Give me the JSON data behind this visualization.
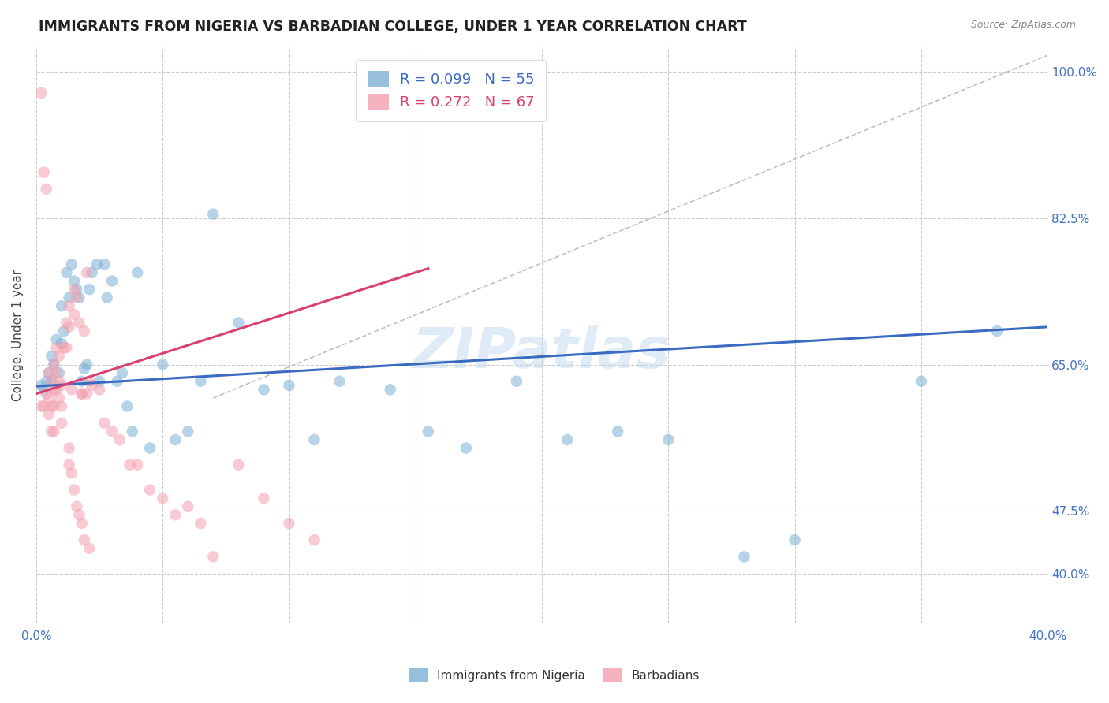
{
  "title": "IMMIGRANTS FROM NIGERIA VS BARBADIAN COLLEGE, UNDER 1 YEAR CORRELATION CHART",
  "source": "Source: ZipAtlas.com",
  "ylabel": "College, Under 1 year",
  "xmin": 0.0,
  "xmax": 0.4,
  "ymin": 0.34,
  "ymax": 1.03,
  "ytick_pos": [
    0.4,
    0.475,
    0.65,
    0.825,
    1.0
  ],
  "ytick_labels": [
    "40.0%",
    "47.5%",
    "65.0%",
    "82.5%",
    "100.0%"
  ],
  "xtick_pos": [
    0.0,
    0.05,
    0.1,
    0.15,
    0.2,
    0.25,
    0.3,
    0.35,
    0.4
  ],
  "xtick_labels": [
    "0.0%",
    "",
    "",
    "",
    "",
    "",
    "",
    "",
    "40.0%"
  ],
  "legend_r_blue": "R = 0.099",
  "legend_n_blue": "N = 55",
  "legend_r_pink": "R = 0.272",
  "legend_n_pink": "N = 67",
  "blue_color": "#7BAFD4",
  "pink_color": "#F4A0B0",
  "blue_line_color": "#3B6BBF",
  "pink_line_color": "#D94070",
  "ref_line_color": "#C0C0C0",
  "background_color": "#FFFFFF",
  "grid_color": "#CCCCCC",
  "watermark_color": "#B8D4EE",
  "blue_line_x0": 0.0,
  "blue_line_y0": 0.624,
  "blue_line_x1": 0.4,
  "blue_line_y1": 0.695,
  "pink_line_x0": 0.0,
  "pink_line_y0": 0.615,
  "pink_line_x1": 0.155,
  "pink_line_y1": 0.765,
  "ref_line_x0": 0.07,
  "ref_line_y0": 0.61,
  "ref_line_x1": 0.4,
  "ref_line_y1": 1.02,
  "blue_scatter_x": [
    0.002,
    0.003,
    0.004,
    0.005,
    0.006,
    0.006,
    0.007,
    0.008,
    0.009,
    0.01,
    0.01,
    0.011,
    0.012,
    0.013,
    0.014,
    0.015,
    0.016,
    0.017,
    0.018,
    0.019,
    0.02,
    0.021,
    0.022,
    0.024,
    0.025,
    0.027,
    0.028,
    0.03,
    0.032,
    0.034,
    0.036,
    0.038,
    0.04,
    0.045,
    0.05,
    0.055,
    0.06,
    0.065,
    0.07,
    0.08,
    0.09,
    0.1,
    0.11,
    0.12,
    0.14,
    0.155,
    0.17,
    0.19,
    0.21,
    0.23,
    0.25,
    0.28,
    0.3,
    0.35,
    0.38
  ],
  "blue_scatter_y": [
    0.625,
    0.62,
    0.63,
    0.64,
    0.66,
    0.63,
    0.65,
    0.68,
    0.64,
    0.72,
    0.675,
    0.69,
    0.76,
    0.73,
    0.77,
    0.75,
    0.74,
    0.73,
    0.63,
    0.645,
    0.65,
    0.74,
    0.76,
    0.77,
    0.63,
    0.77,
    0.73,
    0.75,
    0.63,
    0.64,
    0.6,
    0.57,
    0.76,
    0.55,
    0.65,
    0.56,
    0.57,
    0.63,
    0.83,
    0.7,
    0.62,
    0.625,
    0.56,
    0.63,
    0.62,
    0.57,
    0.55,
    0.63,
    0.56,
    0.57,
    0.56,
    0.42,
    0.44,
    0.63,
    0.69
  ],
  "pink_scatter_x": [
    0.002,
    0.002,
    0.003,
    0.003,
    0.004,
    0.004,
    0.005,
    0.005,
    0.005,
    0.006,
    0.006,
    0.006,
    0.007,
    0.007,
    0.007,
    0.007,
    0.008,
    0.008,
    0.008,
    0.009,
    0.009,
    0.009,
    0.01,
    0.01,
    0.01,
    0.011,
    0.012,
    0.012,
    0.013,
    0.013,
    0.014,
    0.015,
    0.015,
    0.016,
    0.017,
    0.018,
    0.018,
    0.019,
    0.02,
    0.02,
    0.021,
    0.022,
    0.025,
    0.027,
    0.03,
    0.033,
    0.037,
    0.04,
    0.045,
    0.05,
    0.055,
    0.06,
    0.065,
    0.07,
    0.08,
    0.09,
    0.1,
    0.11,
    0.013,
    0.013,
    0.014,
    0.015,
    0.016,
    0.017,
    0.018,
    0.019,
    0.021
  ],
  "pink_scatter_y": [
    0.975,
    0.6,
    0.88,
    0.6,
    0.86,
    0.615,
    0.64,
    0.61,
    0.59,
    0.63,
    0.6,
    0.57,
    0.65,
    0.62,
    0.6,
    0.57,
    0.67,
    0.64,
    0.62,
    0.66,
    0.63,
    0.61,
    0.625,
    0.6,
    0.58,
    0.67,
    0.7,
    0.67,
    0.72,
    0.695,
    0.62,
    0.74,
    0.71,
    0.73,
    0.7,
    0.615,
    0.615,
    0.69,
    0.76,
    0.615,
    0.63,
    0.625,
    0.62,
    0.58,
    0.57,
    0.56,
    0.53,
    0.53,
    0.5,
    0.49,
    0.47,
    0.48,
    0.46,
    0.42,
    0.53,
    0.49,
    0.46,
    0.44,
    0.55,
    0.53,
    0.52,
    0.5,
    0.48,
    0.47,
    0.46,
    0.44,
    0.43
  ]
}
